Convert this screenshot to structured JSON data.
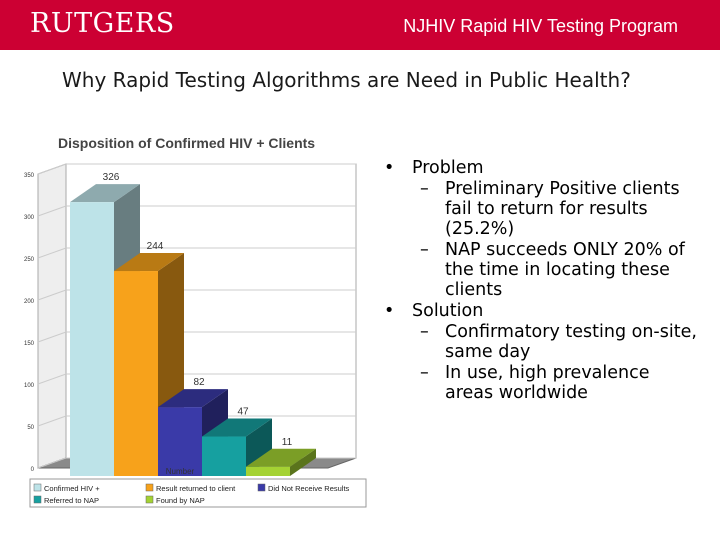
{
  "header": {
    "logo_text": "RUTGERS",
    "program": "NJHIV Rapid HIV Testing Program",
    "bg_color": "#cc0033"
  },
  "slide_title": "Why Rapid Testing Algorithms are Need in Public Health?",
  "chart_data": {
    "type": "bar",
    "title": "Disposition of Confirmed HIV +  Clients",
    "xlabel": "Number",
    "ylabel": "",
    "ylim": [
      0,
      350
    ],
    "yticks": [
      0,
      50,
      100,
      150,
      200,
      250,
      300,
      350
    ],
    "grid": true,
    "legend_position": "bottom",
    "series": [
      {
        "name": "Confirmed HIV +",
        "value": 326,
        "color": "#bde3e8"
      },
      {
        "name": "Result returned to client",
        "value": 244,
        "color": "#f7a21b"
      },
      {
        "name": "Did Not Receive Results",
        "value": 82,
        "color": "#3a3aa8"
      },
      {
        "name": "Referred to NAP",
        "value": 47,
        "color": "#16a0a0"
      },
      {
        "name": "Found by NAP",
        "value": 11,
        "color": "#a4d233"
      }
    ]
  },
  "bullets": [
    {
      "text": "Problem",
      "children": [
        "Preliminary Positive clients fail to return for results (25.2%)",
        "NAP succeeds ONLY 20% of the time in locating these clients"
      ]
    },
    {
      "text": "Solution",
      "children": [
        "Confirmatory testing on-site, same day",
        "In use, high prevalence areas worldwide"
      ]
    }
  ]
}
